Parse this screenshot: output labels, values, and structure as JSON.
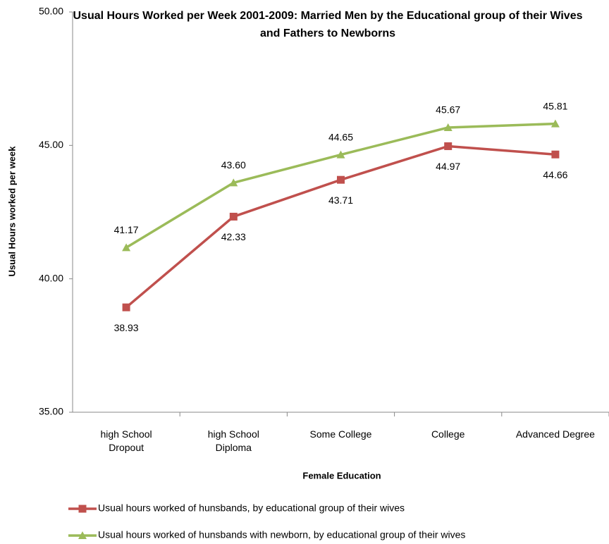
{
  "chart_data": {
    "type": "line",
    "title": "Usual Hours Worked per Week 2001-2009: Married Men by the Educational group of their Wives and Fathers to Newborns",
    "x_label": "Female Education",
    "y_label": "Usual Hours worked per week",
    "categories": [
      "high School Dropout",
      "high School Diploma",
      "Some College",
      "College",
      "Advanced Degree"
    ],
    "series": [
      {
        "name": "Usual hours worked of hunsbands, by educational group of their wives",
        "color": "#c0504d",
        "marker": "square",
        "values": [
          38.93,
          42.33,
          43.71,
          44.97,
          44.66
        ],
        "value_labels": [
          "38.93",
          "42.33",
          "43.71",
          "44.97",
          "44.66"
        ]
      },
      {
        "name": "Usual hours worked of hunsbands with newborn, by educational group of their wives",
        "color": "#9bbb59",
        "marker": "triangle",
        "values": [
          41.17,
          43.6,
          44.65,
          45.67,
          45.81
        ],
        "value_labels": [
          "41.17",
          "43.60",
          "44.65",
          "45.67",
          "45.81"
        ]
      }
    ],
    "ylim": [
      35,
      50
    ],
    "yticks": [
      {
        "value": 35,
        "label": "35.00"
      },
      {
        "value": 40,
        "label": "40.00"
      },
      {
        "value": 45,
        "label": "45.00"
      },
      {
        "value": 50,
        "label": "50.00"
      }
    ],
    "grid": false
  }
}
